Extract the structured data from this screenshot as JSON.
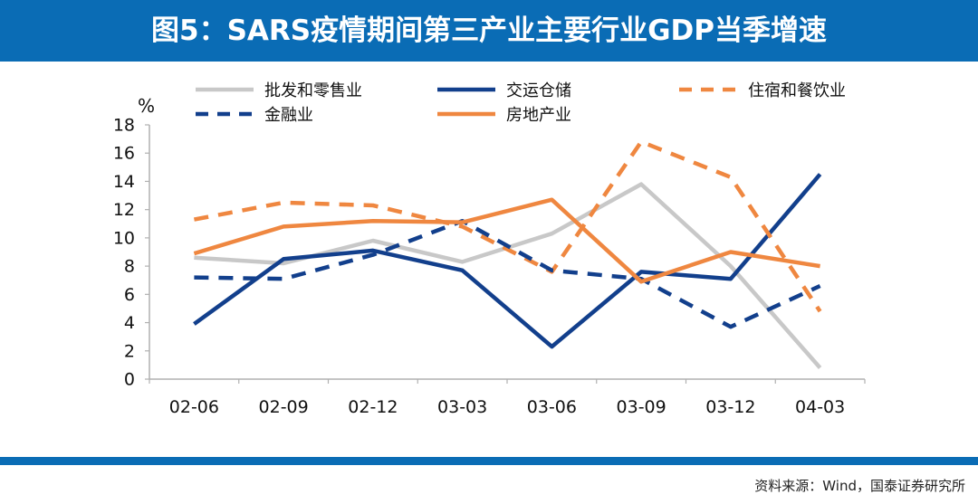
{
  "header": {
    "title": "图5：SARS疫情期间第三产业主要行业GDP当季增速"
  },
  "footer": {
    "source": "资料来源：Wind，国泰证券研究所"
  },
  "colors": {
    "header_bg": "#0a6cb5",
    "axis": "#b0b0b0"
  },
  "chart_data": {
    "type": "line",
    "unit_label": "%",
    "categories": [
      "02-06",
      "02-09",
      "02-12",
      "03-03",
      "03-06",
      "03-09",
      "03-12",
      "04-03"
    ],
    "ylim": [
      0,
      18
    ],
    "yticks": [
      0,
      2,
      4,
      6,
      8,
      10,
      12,
      14,
      16,
      18
    ],
    "grid": false,
    "legend_position": "top",
    "series": [
      {
        "name": "批发和零售业",
        "color": "#c8c8c8",
        "dash": "solid",
        "values": [
          8.6,
          8.2,
          9.8,
          8.3,
          10.3,
          13.8,
          8.0,
          0.8
        ]
      },
      {
        "name": "交运仓储",
        "color": "#123f8c",
        "dash": "solid",
        "values": [
          3.9,
          8.5,
          9.1,
          7.7,
          2.3,
          7.6,
          7.1,
          14.5
        ]
      },
      {
        "name": "住宿和餐饮业",
        "color": "#ef8740",
        "dash": "dashed",
        "values": [
          11.3,
          12.5,
          12.3,
          10.8,
          7.6,
          16.8,
          14.3,
          4.8
        ]
      },
      {
        "name": "金融业",
        "color": "#123f8c",
        "dash": "dashed",
        "values": [
          7.2,
          7.1,
          8.8,
          11.2,
          7.7,
          7.1,
          3.7,
          6.6
        ]
      },
      {
        "name": "房地产业",
        "color": "#ef8740",
        "dash": "solid",
        "values": [
          8.9,
          10.8,
          11.2,
          11.1,
          12.7,
          6.9,
          9.0,
          8.0
        ]
      }
    ]
  }
}
